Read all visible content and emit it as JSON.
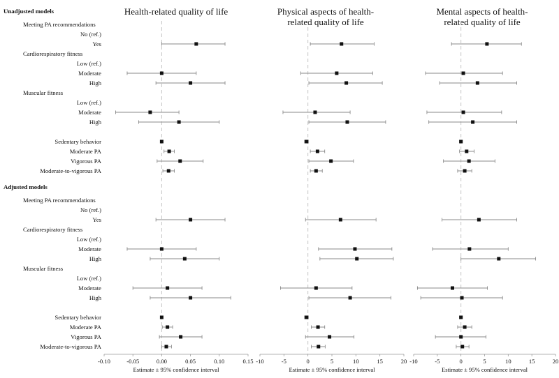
{
  "chart_data": {
    "type": "forest",
    "sections": [
      "Unadjusted models",
      "Adjusted models"
    ],
    "rows": [
      "Meeting PA recommendations",
      "No (ref.)",
      "Yes",
      "Cardiorespiratory fitness",
      "Low (ref.)",
      "Moderate",
      "High",
      "Muscular fitness",
      "Low (ref.)",
      "Moderate",
      "High",
      "Sedentary behavior",
      "Moderate PA",
      "Vigorous PA",
      "Moderate-to-vigorous PA"
    ],
    "xlabel": "Estimate ± 95% confidence interval",
    "panels": [
      {
        "title": [
          "Health-related quality of life"
        ],
        "xlim": [
          -0.1,
          0.15
        ],
        "ticks": [
          "-0.10",
          "-0.05",
          "0.00",
          "0.05",
          "0.10",
          "0.15"
        ],
        "tick_values": [
          -0.1,
          -0.05,
          0,
          0.05,
          0.1,
          0.15
        ],
        "series": [
          {
            "name": "Unadjusted models",
            "estimates": [
              null,
              null,
              0.06,
              null,
              null,
              0.0,
              0.05,
              null,
              null,
              -0.02,
              0.03,
              0.0,
              0.013,
              0.032,
              0.012
            ],
            "ci_low": [
              null,
              null,
              0.0,
              null,
              null,
              -0.06,
              -0.01,
              null,
              null,
              -0.08,
              -0.04,
              -0.002,
              0.004,
              -0.008,
              0.002
            ],
            "ci_high": [
              null,
              null,
              0.11,
              null,
              null,
              0.06,
              0.11,
              null,
              null,
              0.03,
              0.1,
              0.002,
              0.022,
              0.072,
              0.022
            ]
          },
          {
            "name": "Adjusted models",
            "estimates": [
              null,
              null,
              0.05,
              null,
              null,
              0.0,
              0.04,
              null,
              null,
              0.01,
              0.05,
              0.0,
              0.01,
              0.033,
              0.008
            ],
            "ci_low": [
              null,
              null,
              -0.01,
              null,
              null,
              -0.06,
              -0.02,
              null,
              null,
              -0.05,
              -0.02,
              -0.002,
              0.001,
              -0.004,
              0.0
            ],
            "ci_high": [
              null,
              null,
              0.11,
              null,
              null,
              0.06,
              0.1,
              null,
              null,
              0.07,
              0.12,
              0.002,
              0.019,
              0.07,
              0.017
            ]
          }
        ]
      },
      {
        "title": [
          "Physical aspects of health-",
          "related quality of life"
        ],
        "xlim": [
          -10,
          20
        ],
        "ticks": [
          "-10",
          "-5",
          "0",
          "5",
          "10",
          "15",
          "20"
        ],
        "tick_values": [
          -10,
          -5,
          0,
          5,
          10,
          15,
          20
        ],
        "series": [
          {
            "name": "Unadjusted models",
            "estimates": [
              null,
              null,
              7.0,
              null,
              null,
              6.0,
              8.0,
              null,
              null,
              1.5,
              8.2,
              -0.3,
              2.0,
              4.8,
              1.7
            ],
            "ci_low": [
              null,
              null,
              0.5,
              null,
              null,
              -1.5,
              0.2,
              null,
              null,
              -5.2,
              0.2,
              -0.7,
              0.5,
              0.2,
              0.5
            ],
            "ci_high": [
              null,
              null,
              13.8,
              null,
              null,
              13.5,
              15.5,
              null,
              null,
              8.8,
              16.2,
              0.1,
              3.5,
              9.5,
              3.0
            ]
          },
          {
            "name": "Adjusted models",
            "estimates": [
              null,
              null,
              6.8,
              null,
              null,
              9.8,
              10.2,
              null,
              null,
              1.7,
              8.8,
              -0.3,
              2.1,
              4.5,
              2.2
            ],
            "ci_low": [
              null,
              null,
              -0.5,
              null,
              null,
              2.2,
              2.5,
              null,
              null,
              -5.7,
              0.2,
              -0.7,
              0.7,
              -0.5,
              0.7
            ],
            "ci_high": [
              null,
              null,
              14.2,
              null,
              null,
              17.5,
              17.8,
              null,
              null,
              9.2,
              17.3,
              0.1,
              3.5,
              9.6,
              3.6
            ]
          }
        ]
      },
      {
        "title": [
          "Mental aspects of health-",
          "related quality of life"
        ],
        "xlim": [
          -10,
          20
        ],
        "ticks": [
          "-10",
          "-5",
          "0",
          "5",
          "10",
          "15",
          "20"
        ],
        "tick_values": [
          -10,
          -5,
          0,
          5,
          10,
          15,
          20
        ],
        "series": [
          {
            "name": "Unadjusted models",
            "estimates": [
              null,
              null,
              5.5,
              null,
              null,
              0.5,
              3.5,
              null,
              null,
              0.5,
              2.5,
              0.0,
              1.2,
              1.7,
              0.8
            ],
            "ci_low": [
              null,
              null,
              -2.0,
              null,
              null,
              -7.5,
              -4.5,
              null,
              null,
              -7.2,
              -6.8,
              -0.3,
              -0.3,
              -3.7,
              -0.7
            ],
            "ci_high": [
              null,
              null,
              12.8,
              null,
              null,
              8.8,
              11.8,
              null,
              null,
              8.6,
              11.8,
              0.3,
              2.8,
              7.2,
              2.3
            ]
          },
          {
            "name": "Adjusted models",
            "estimates": [
              null,
              null,
              3.8,
              null,
              null,
              1.8,
              8.0,
              null,
              null,
              -1.8,
              0.2,
              0.0,
              0.8,
              0.0,
              0.3
            ],
            "ci_low": [
              null,
              null,
              -4.0,
              null,
              null,
              -6.0,
              0.0,
              null,
              null,
              -9.2,
              -8.5,
              -0.3,
              -0.7,
              -5.4,
              -1.0
            ],
            "ci_high": [
              null,
              null,
              11.8,
              null,
              null,
              10.0,
              15.8,
              null,
              null,
              5.6,
              8.8,
              0.3,
              2.3,
              5.3,
              1.7
            ]
          }
        ]
      }
    ]
  }
}
